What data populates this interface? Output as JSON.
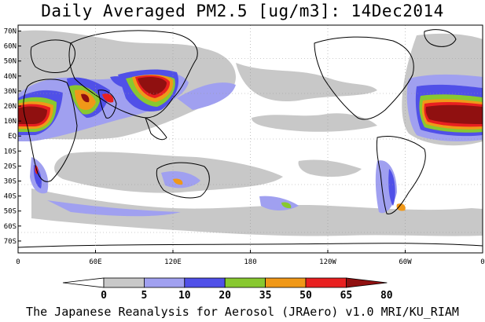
{
  "title": "Daily Averaged PM2.5 [ug/m3]: 14Dec2014",
  "footer": "The Japanese Reanalysis for Aerosol (JRAero) v1.0 MRI/KU_RIAM",
  "map": {
    "lat_labels": [
      "70N",
      "60N",
      "50N",
      "40N",
      "30N",
      "20N",
      "10N",
      "EQ",
      "10S",
      "20S",
      "30S",
      "40S",
      "50S",
      "60S",
      "70S"
    ],
    "lon_labels": [
      "0",
      "60E",
      "120E",
      "180",
      "120W",
      "60W",
      "0"
    ],
    "grid": true
  },
  "colorbar": {
    "levels": [
      "0",
      "5",
      "10",
      "20",
      "35",
      "50",
      "65",
      "80"
    ],
    "colors": [
      "#ffffff",
      "#c8c8c8",
      "#a0a0f0",
      "#5050e8",
      "#88c830",
      "#f09818",
      "#e82020",
      "#901010"
    ]
  },
  "palette": {
    "gray": "#c8c8c8",
    "lightblue": "#a0a0f0",
    "blue": "#5050e8",
    "green": "#88c830",
    "orange": "#f09818",
    "red": "#e82020",
    "darkred": "#901010",
    "coast": "#000000",
    "grid": "#999999"
  }
}
